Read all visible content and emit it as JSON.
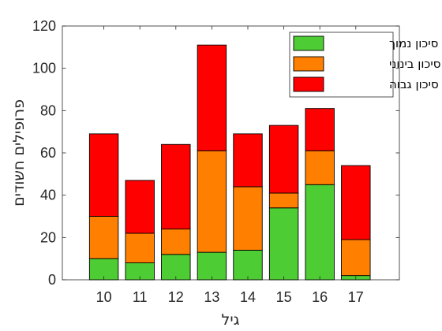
{
  "chart_data": {
    "type": "bar",
    "stacked": true,
    "categories": [
      "10",
      "11",
      "12",
      "13",
      "14",
      "15",
      "16",
      "17"
    ],
    "series": [
      {
        "name": "סיכון נמוך",
        "color": "#4dcc33",
        "values": [
          10,
          8,
          12,
          13,
          14,
          34,
          45,
          2
        ]
      },
      {
        "name": "סיכון בינוני",
        "color": "#ff7f00",
        "values": [
          20,
          14,
          12,
          48,
          30,
          7,
          16,
          17
        ]
      },
      {
        "name": "סיכון גבוה",
        "color": "#ff0000",
        "values": [
          39,
          25,
          40,
          50,
          25,
          32,
          20,
          35
        ]
      }
    ],
    "xlabel": "גיל",
    "ylabel": "פרופילים חשודים",
    "ylim": [
      0,
      120
    ],
    "yticks": [
      0,
      20,
      40,
      60,
      80,
      100,
      120
    ],
    "grid": false,
    "legend_position": "top-right"
  }
}
